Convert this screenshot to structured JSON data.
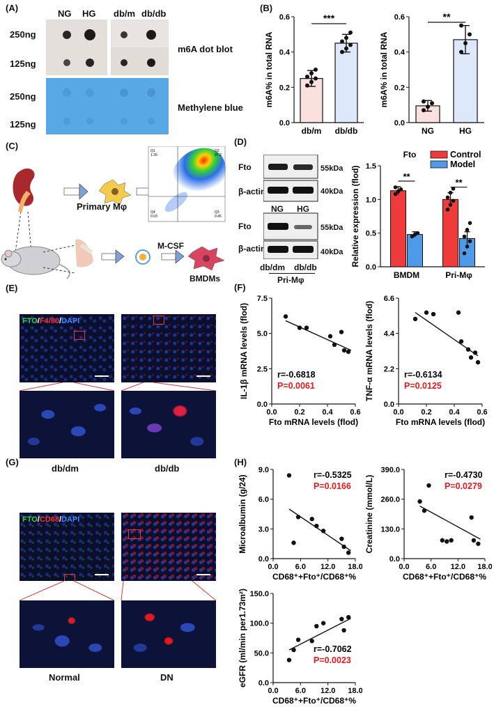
{
  "panels": {
    "a": "(A)",
    "b": "(B)",
    "c": "(C)",
    "d": "(D)",
    "e": "(E)",
    "f": "(F)",
    "g": "(G)",
    "h": "(H)"
  },
  "dotblot": {
    "cols_left": [
      "NG",
      "HG"
    ],
    "cols_right": [
      "db/m",
      "db/db"
    ],
    "rows": [
      "250ng",
      "125ng"
    ],
    "mb_rows": [
      "250ng",
      "125ng"
    ],
    "label_m6a": "m6A dot blot",
    "label_mb": "Methylene blue"
  },
  "schematic": {
    "primary": "Primary Mφ",
    "mcsf": "M-CSF",
    "bmdm": "BMDMs",
    "facs_q": [
      "Q1",
      "1.35",
      "Q2",
      "97.2",
      "Q4",
      "0.03",
      "Q3",
      "0.45"
    ]
  },
  "western": {
    "fto": "Fto",
    "actin": "β-actin",
    "kda55": "55kDa",
    "kda40": "40kDa",
    "ng": "NG",
    "hg": "HG",
    "dbdm": "db/dm",
    "dbdb": "db/db",
    "primphi": "Pri-Mφ"
  },
  "micro_e": {
    "legend_fto": "FTO",
    "legend_f480": "F4/80",
    "legend_dapi": "DAPI",
    "label_left": "db/dm",
    "label_right": "db/db"
  },
  "micro_g": {
    "legend_fto": "FTO",
    "legend_cd68": "CD68",
    "legend_dapi": "DAPI",
    "label_left": "Normal",
    "label_right": "DN"
  },
  "chart_data": [
    {
      "id": "B1",
      "type": "bar",
      "categories": [
        "db/m",
        "db/db"
      ],
      "values": [
        0.25,
        0.45
      ],
      "errors": [
        0.045,
        0.05
      ],
      "points": [
        [
          0.21,
          0.23,
          0.25,
          0.26,
          0.28,
          0.3
        ],
        [
          0.4,
          0.42,
          0.44,
          0.46,
          0.48,
          0.51
        ]
      ],
      "colors": [
        "#fbe0e0",
        "#dde9fb"
      ],
      "ylabel": "m6A% in total RNA",
      "ylim": [
        0,
        0.6
      ],
      "yticks": [
        "0.0",
        "0.2",
        "0.4",
        "0.6"
      ],
      "sig": "***"
    },
    {
      "id": "B2",
      "type": "bar",
      "categories": [
        "NG",
        "HG"
      ],
      "values": [
        0.095,
        0.47
      ],
      "errors": [
        0.03,
        0.08
      ],
      "points": [
        [
          0.07,
          0.09,
          0.11,
          0.12
        ],
        [
          0.4,
          0.45,
          0.5,
          0.55
        ]
      ],
      "colors": [
        "#fbe0e0",
        "#dde9fb"
      ],
      "ylabel": "m6A% in total RNA",
      "ylim": [
        0,
        0.6
      ],
      "yticks": [
        "0.0",
        "0.2",
        "0.4",
        "0.6"
      ],
      "sig": "**"
    },
    {
      "id": "D",
      "type": "bar",
      "categories": [
        "BMDM",
        "Pri-Mφ"
      ],
      "series": [
        {
          "name": "Control",
          "color": "#ef3b3b",
          "values": [
            1.13,
            1.0
          ],
          "errors": [
            0.06,
            0.1
          ],
          "points": [
            [
              1.08,
              1.12,
              1.15,
              1.18
            ],
            [
              0.85,
              0.92,
              0.98,
              1.03,
              1.1,
              1.16
            ]
          ]
        },
        {
          "name": "Model",
          "color": "#4f9ae8",
          "values": [
            0.48,
            0.42
          ],
          "errors": [
            0.04,
            0.1
          ],
          "points": [
            [
              0.45,
              0.48,
              0.5
            ],
            [
              0.2,
              0.3,
              0.38,
              0.45,
              0.55,
              0.65
            ]
          ]
        }
      ],
      "legend_title": "Fto",
      "ylabel": "Relative expression (flod)",
      "ylim": [
        0,
        1.5
      ],
      "yticks": [
        "0.0",
        "0.5",
        "1.0",
        "1.5"
      ],
      "sig": [
        "**",
        "**"
      ]
    },
    {
      "id": "F1",
      "type": "scatter",
      "x": [
        0.1,
        0.2,
        0.25,
        0.42,
        0.45,
        0.5,
        0.52,
        0.55
      ],
      "y": [
        6.2,
        5.4,
        5.4,
        4.8,
        4.2,
        5.1,
        3.8,
        3.7
      ],
      "fit": [
        [
          0.1,
          5.9
        ],
        [
          0.57,
          3.8
        ]
      ],
      "xlabel": "Fto mRNA levels (flod)",
      "ylabel": "IL-1β mRNA levels (flod)",
      "xlim": [
        0,
        0.6
      ],
      "ylim": [
        0,
        7.5
      ],
      "xticks": [
        "0.0",
        "0.2",
        "0.4",
        "0.6"
      ],
      "yticks": [
        "0.0",
        "2.5",
        "5.0",
        "7.5"
      ],
      "r": "r=-0.6818",
      "p": "P=0.0061"
    },
    {
      "id": "F2",
      "type": "scatter",
      "x": [
        0.12,
        0.2,
        0.25,
        0.43,
        0.45,
        0.5,
        0.52,
        0.55,
        0.57
      ],
      "y": [
        5.3,
        5.7,
        5.6,
        5.7,
        3.9,
        3.4,
        2.9,
        3.2,
        2.6
      ],
      "fit": [
        [
          0.12,
          5.7
        ],
        [
          0.57,
          3.0
        ]
      ],
      "xlabel": "Fto mRNA levels (flod)",
      "ylabel": "TNF-α mRNA levels (flod)",
      "xlim": [
        0,
        0.6
      ],
      "ylim": [
        0,
        6.6
      ],
      "xticks": [
        "0.0",
        "0.2",
        "0.4",
        "0.6"
      ],
      "yticks": [
        "0.0",
        "2.2",
        "4.4",
        "6.6"
      ],
      "r": "r=-0.6134",
      "p": "P=0.0125"
    },
    {
      "id": "H1",
      "type": "scatter",
      "x": [
        3.5,
        4.5,
        5.5,
        8.5,
        9.5,
        11,
        15,
        15.5,
        16.5
      ],
      "y": [
        8.4,
        1.6,
        4.2,
        4.0,
        3.3,
        2.8,
        2.0,
        1.2,
        0.6
      ],
      "fit": [
        [
          3.5,
          5.0
        ],
        [
          17,
          0.8
        ]
      ],
      "xlabel": "CD68⁺+Fto⁺/CD68⁺%",
      "ylabel": "Microalbumin (g/24)",
      "xlim": [
        0,
        18
      ],
      "ylim": [
        0,
        9
      ],
      "xticks": [
        "0.0",
        "6.0",
        "12.0",
        "18.0"
      ],
      "yticks": [
        "0.0",
        "3.0",
        "6.0",
        "9.0"
      ],
      "r": "r=-0.5325",
      "p": "P=0.0166"
    },
    {
      "id": "H2",
      "type": "scatter",
      "x": [
        3.5,
        4.5,
        5.5,
        8.5,
        9.5,
        10.5,
        15,
        15.5,
        16.5
      ],
      "y": [
        250,
        210,
        320,
        80,
        75,
        80,
        180,
        80,
        65
      ],
      "fit": [
        [
          3.5,
          230
        ],
        [
          17,
          85
        ]
      ],
      "xlabel": "CD68⁺+Fto⁺/CD68⁺%",
      "ylabel": "Creatinine (mmol/L)",
      "xlim": [
        0,
        18
      ],
      "ylim": [
        0,
        390
      ],
      "xticks": [
        "0.0",
        "6.0",
        "12.0",
        "18.0"
      ],
      "yticks": [
        "0.0",
        "130.0",
        "260.0",
        "390.0"
      ],
      "r": "r=-0.4730",
      "p": "P=0.0279"
    },
    {
      "id": "H3",
      "type": "scatter",
      "x": [
        3.5,
        4.5,
        5.5,
        8.5,
        9.5,
        11,
        15,
        15.5,
        16.5
      ],
      "y": [
        38,
        55,
        72,
        70,
        95,
        100,
        107,
        88,
        110
      ],
      "fit": [
        [
          3.5,
          55
        ],
        [
          17,
          108
        ]
      ],
      "xlabel": "CD68⁺+Fto⁺/CD68⁺%",
      "ylabel": "eGFR (ml/min per1.73m²)",
      "xlim": [
        0,
        18
      ],
      "ylim": [
        0,
        150
      ],
      "xticks": [
        "0.0",
        "6.0",
        "12.0",
        "18.0"
      ],
      "yticks": [
        "0.0",
        "50.0",
        "100.0",
        "150.0"
      ],
      "r": "r=-0.7062",
      "p": "P=0.0023"
    }
  ]
}
